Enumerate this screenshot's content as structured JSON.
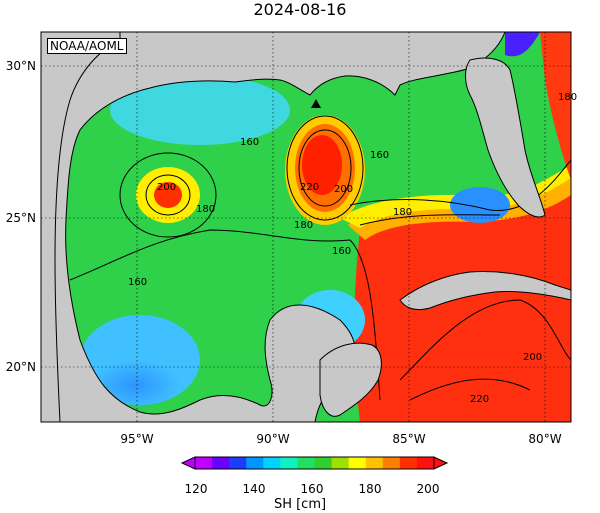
{
  "title": "2024-08-16",
  "credit": "NOAA/AOML",
  "latitude_labels": [
    "30°N",
    "25°N",
    "20°N"
  ],
  "longitude_labels": [
    "95°W",
    "90°W",
    "85°W",
    "80°W"
  ],
  "contour_labels": [
    "160",
    "200",
    "180",
    "160",
    "160",
    "200",
    "220",
    "180",
    "160",
    "180",
    "180",
    "200",
    "220"
  ],
  "colorbar": {
    "title": "SH [cm]",
    "ticks": [
      "120",
      "140",
      "160",
      "180",
      "200"
    ],
    "colors": [
      "#c000ff",
      "#6a00ff",
      "#1e3cff",
      "#0096ff",
      "#00d2ff",
      "#10f0c0",
      "#20e060",
      "#2fd02f",
      "#a0e000",
      "#ffff00",
      "#ffc000",
      "#ff8000",
      "#ff3000",
      "#ff1010"
    ]
  },
  "colors": {
    "land": "#c8c8c8",
    "warm_loop": "#ff2a10",
    "cool_shelf": "#36b8ff"
  }
}
